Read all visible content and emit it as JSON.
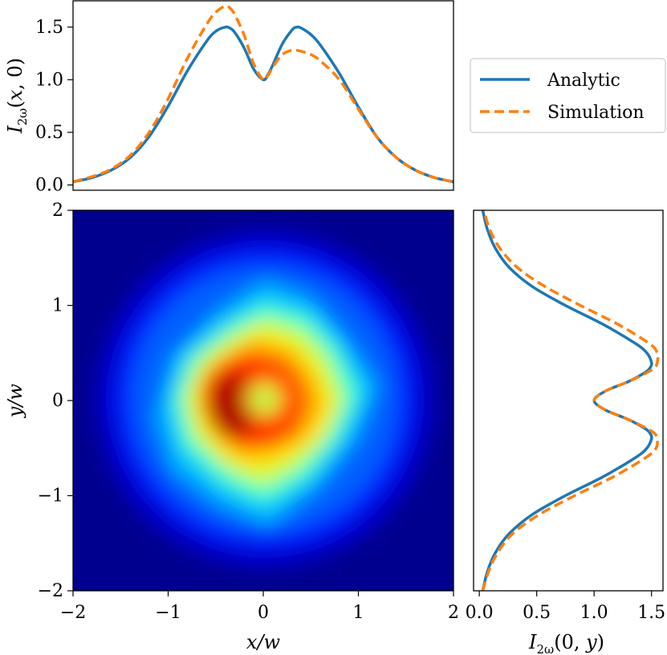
{
  "chart_data": [
    {
      "type": "line",
      "panel": "top",
      "xlabel": "",
      "ylabel": "I_2ω(x,0)",
      "xlim": [
        -2,
        2
      ],
      "ylim": [
        -0.05,
        1.75
      ],
      "yticks": [
        "0.0",
        "0.5",
        "1.0",
        "1.5"
      ],
      "x": [
        -2.0,
        -1.8,
        -1.6,
        -1.4,
        -1.2,
        -1.0,
        -0.8,
        -0.6,
        -0.5,
        -0.4,
        -0.35,
        -0.3,
        -0.2,
        -0.1,
        0.0,
        0.05,
        0.1,
        0.2,
        0.3,
        0.35,
        0.4,
        0.5,
        0.6,
        0.8,
        1.0,
        1.2,
        1.4,
        1.6,
        1.8,
        2.0
      ],
      "series": [
        {
          "name": "Analytic",
          "color": "#1f77b4",
          "dashed": false,
          "values": [
            0.03,
            0.07,
            0.14,
            0.26,
            0.46,
            0.75,
            1.08,
            1.36,
            1.46,
            1.5,
            1.49,
            1.45,
            1.3,
            1.1,
            1.0,
            1.05,
            1.14,
            1.34,
            1.47,
            1.5,
            1.49,
            1.43,
            1.33,
            1.06,
            0.74,
            0.45,
            0.26,
            0.14,
            0.07,
            0.03
          ]
        },
        {
          "name": "Simulation",
          "color": "#ff7f0e",
          "dashed": true,
          "values": [
            0.03,
            0.08,
            0.15,
            0.28,
            0.5,
            0.82,
            1.2,
            1.52,
            1.64,
            1.7,
            1.68,
            1.62,
            1.42,
            1.15,
            1.0,
            1.04,
            1.12,
            1.24,
            1.28,
            1.28,
            1.27,
            1.24,
            1.18,
            1.0,
            0.72,
            0.45,
            0.26,
            0.14,
            0.07,
            0.03
          ]
        }
      ]
    },
    {
      "type": "heatmap",
      "panel": "main",
      "xlabel": "x/w",
      "ylabel": "y/w",
      "xlim": [
        -2,
        2
      ],
      "ylim": [
        -2,
        2
      ],
      "xticks": [
        "−2",
        "−1",
        "0",
        "1",
        "2"
      ],
      "yticks": [
        "−2",
        "−1",
        "0",
        "1",
        "2"
      ],
      "colormap": "jet",
      "description_values": {
        "peak_intensity_radius": 0.4,
        "center_value": 1.0,
        "max_value": 1.7
      }
    },
    {
      "type": "line",
      "panel": "right",
      "xlabel": "I_2ω(0,y)",
      "ylabel": "",
      "xlim": [
        -0.05,
        1.6
      ],
      "ylim": [
        -2,
        2
      ],
      "xticks": [
        "0.0",
        "0.5",
        "1.0",
        "1.5"
      ],
      "y": [
        -2.0,
        -1.8,
        -1.6,
        -1.4,
        -1.2,
        -1.0,
        -0.8,
        -0.6,
        -0.5,
        -0.4,
        -0.35,
        -0.3,
        -0.2,
        -0.1,
        0.0,
        0.1,
        0.2,
        0.3,
        0.35,
        0.4,
        0.5,
        0.6,
        0.8,
        1.0,
        1.2,
        1.4,
        1.6,
        1.8,
        2.0
      ],
      "series": [
        {
          "name": "Analytic",
          "color": "#1f77b4",
          "dashed": false,
          "values": [
            0.03,
            0.07,
            0.14,
            0.26,
            0.46,
            0.75,
            1.08,
            1.36,
            1.46,
            1.5,
            1.49,
            1.45,
            1.3,
            1.1,
            1.0,
            1.1,
            1.3,
            1.45,
            1.49,
            1.5,
            1.46,
            1.36,
            1.08,
            0.75,
            0.46,
            0.26,
            0.14,
            0.07,
            0.03
          ]
        },
        {
          "name": "Simulation",
          "color": "#ff7f0e",
          "dashed": true,
          "values": [
            0.03,
            0.08,
            0.16,
            0.29,
            0.52,
            0.83,
            1.17,
            1.45,
            1.54,
            1.55,
            1.53,
            1.47,
            1.3,
            1.1,
            1.0,
            1.1,
            1.3,
            1.47,
            1.53,
            1.55,
            1.55,
            1.48,
            1.21,
            0.88,
            0.57,
            0.33,
            0.18,
            0.09,
            0.04
          ]
        }
      ]
    }
  ],
  "legend": {
    "entries": [
      {
        "name": "Analytic",
        "color": "#1f77b4",
        "dashed": false
      },
      {
        "name": "Simulation",
        "color": "#ff7f0e",
        "dashed": true
      }
    ]
  }
}
